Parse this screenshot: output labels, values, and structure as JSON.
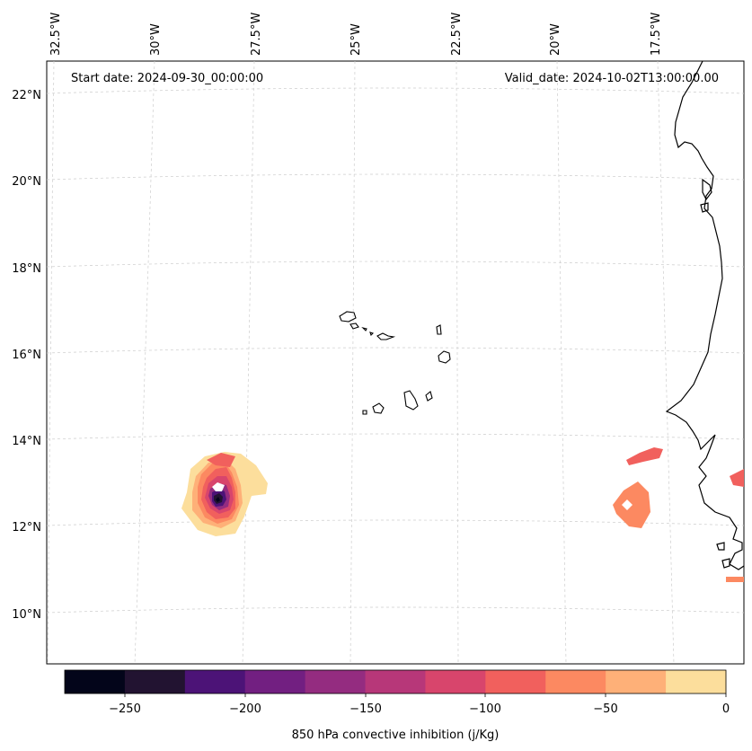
{
  "header": {
    "start_date": "Start date: 2024-09-30_00:00:00",
    "valid_date": "Valid_date: 2024-10-02T13:00:00.00"
  },
  "axes": {
    "lon_labels": [
      "32.5°W",
      "30°W",
      "27.5°W",
      "25°W",
      "22.5°W",
      "20°W",
      "17.5°W"
    ],
    "lat_labels": [
      "22°N",
      "20°N",
      "18°N",
      "16°N",
      "14°N",
      "12°N",
      "10°N"
    ]
  },
  "colorbar": {
    "label": "850 hPa convective inhibition (j/Kg)",
    "ticks": [
      "−250",
      "−200",
      "−150",
      "−100",
      "−50",
      "0"
    ],
    "colors": [
      "#03051a",
      "#221331",
      "#4c1377",
      "#721f81",
      "#942c80",
      "#b73779",
      "#d8456c",
      "#f1605d",
      "#fc8961",
      "#feb078",
      "#fcde9c"
    ]
  }
}
